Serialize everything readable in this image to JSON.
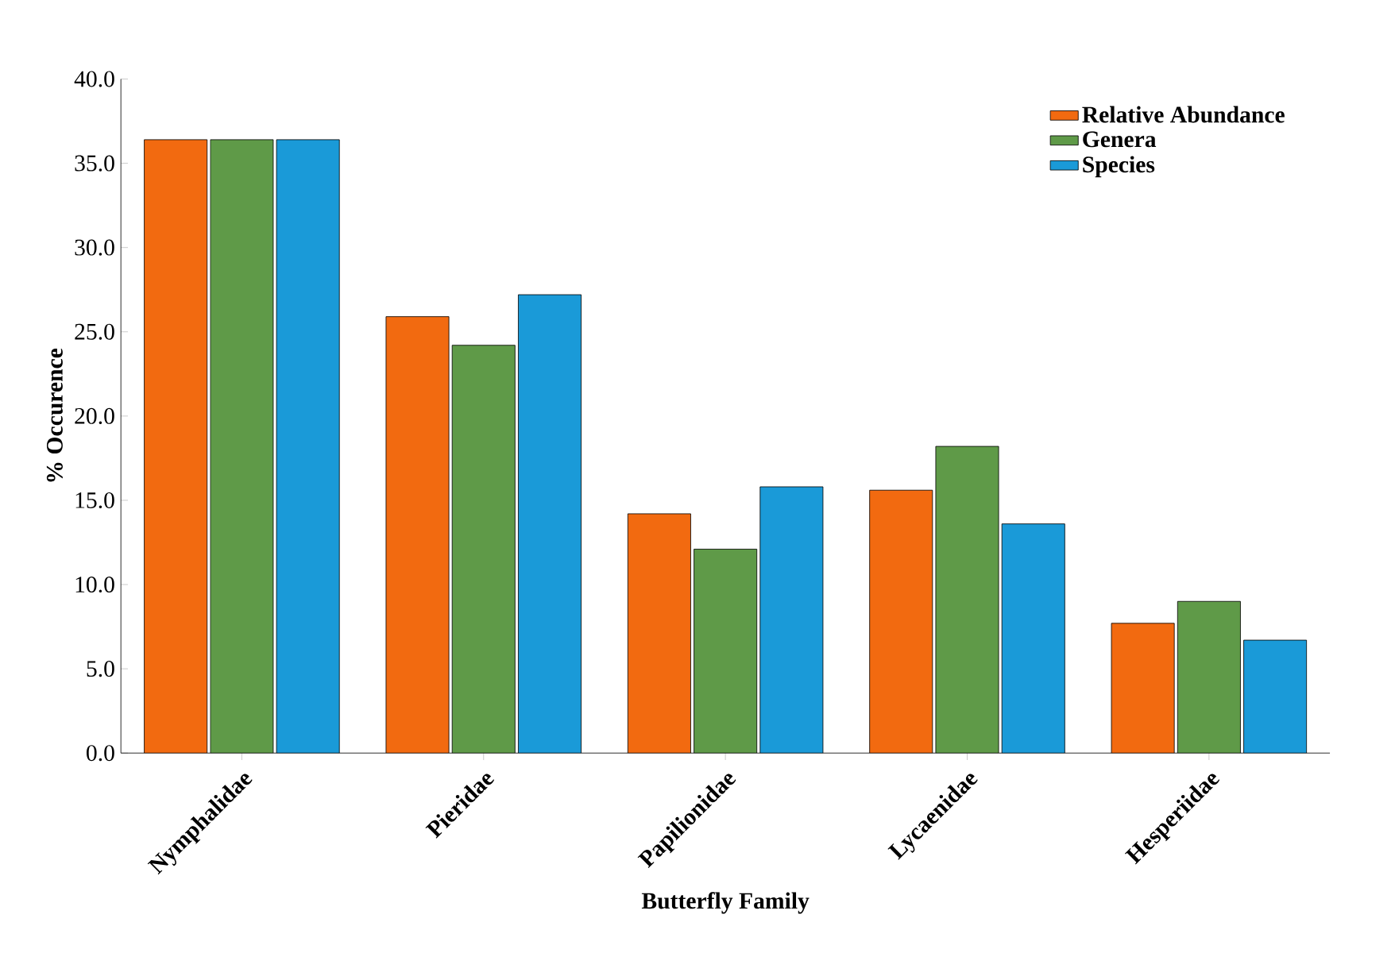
{
  "chart_data": {
    "type": "bar",
    "xlabel": "Butterfly Family",
    "ylabel": "% Occurence",
    "categories": [
      "Nymphalidae",
      "Pieridae",
      "Papilionidae",
      "Lycaenidae",
      "Hesperiidae"
    ],
    "series": [
      {
        "name": "Relative Abundance",
        "color": "#f26a10",
        "values": [
          36.4,
          25.9,
          14.2,
          15.6,
          7.7
        ]
      },
      {
        "name": "Genera",
        "color": "#5f9a48",
        "values": [
          36.4,
          24.2,
          12.1,
          18.2,
          9.0
        ]
      },
      {
        "name": "Species",
        "color": "#1a9ad8",
        "values": [
          36.4,
          27.2,
          15.8,
          13.6,
          6.7
        ]
      }
    ],
    "ylim": [
      0,
      40
    ],
    "yticks": [
      {
        "value": 0,
        "label": "0.0"
      },
      {
        "value": 5,
        "label": "5.0"
      },
      {
        "value": 10,
        "label": "10.0"
      },
      {
        "value": 15,
        "label": "15.0"
      },
      {
        "value": 20,
        "label": "20.0"
      },
      {
        "value": 25,
        "label": "25.0"
      },
      {
        "value": 30,
        "label": "30.0"
      },
      {
        "value": 35,
        "label": "35.0"
      },
      {
        "value": 40,
        "label": "40.0"
      }
    ],
    "grid": false,
    "legend": "top right"
  }
}
